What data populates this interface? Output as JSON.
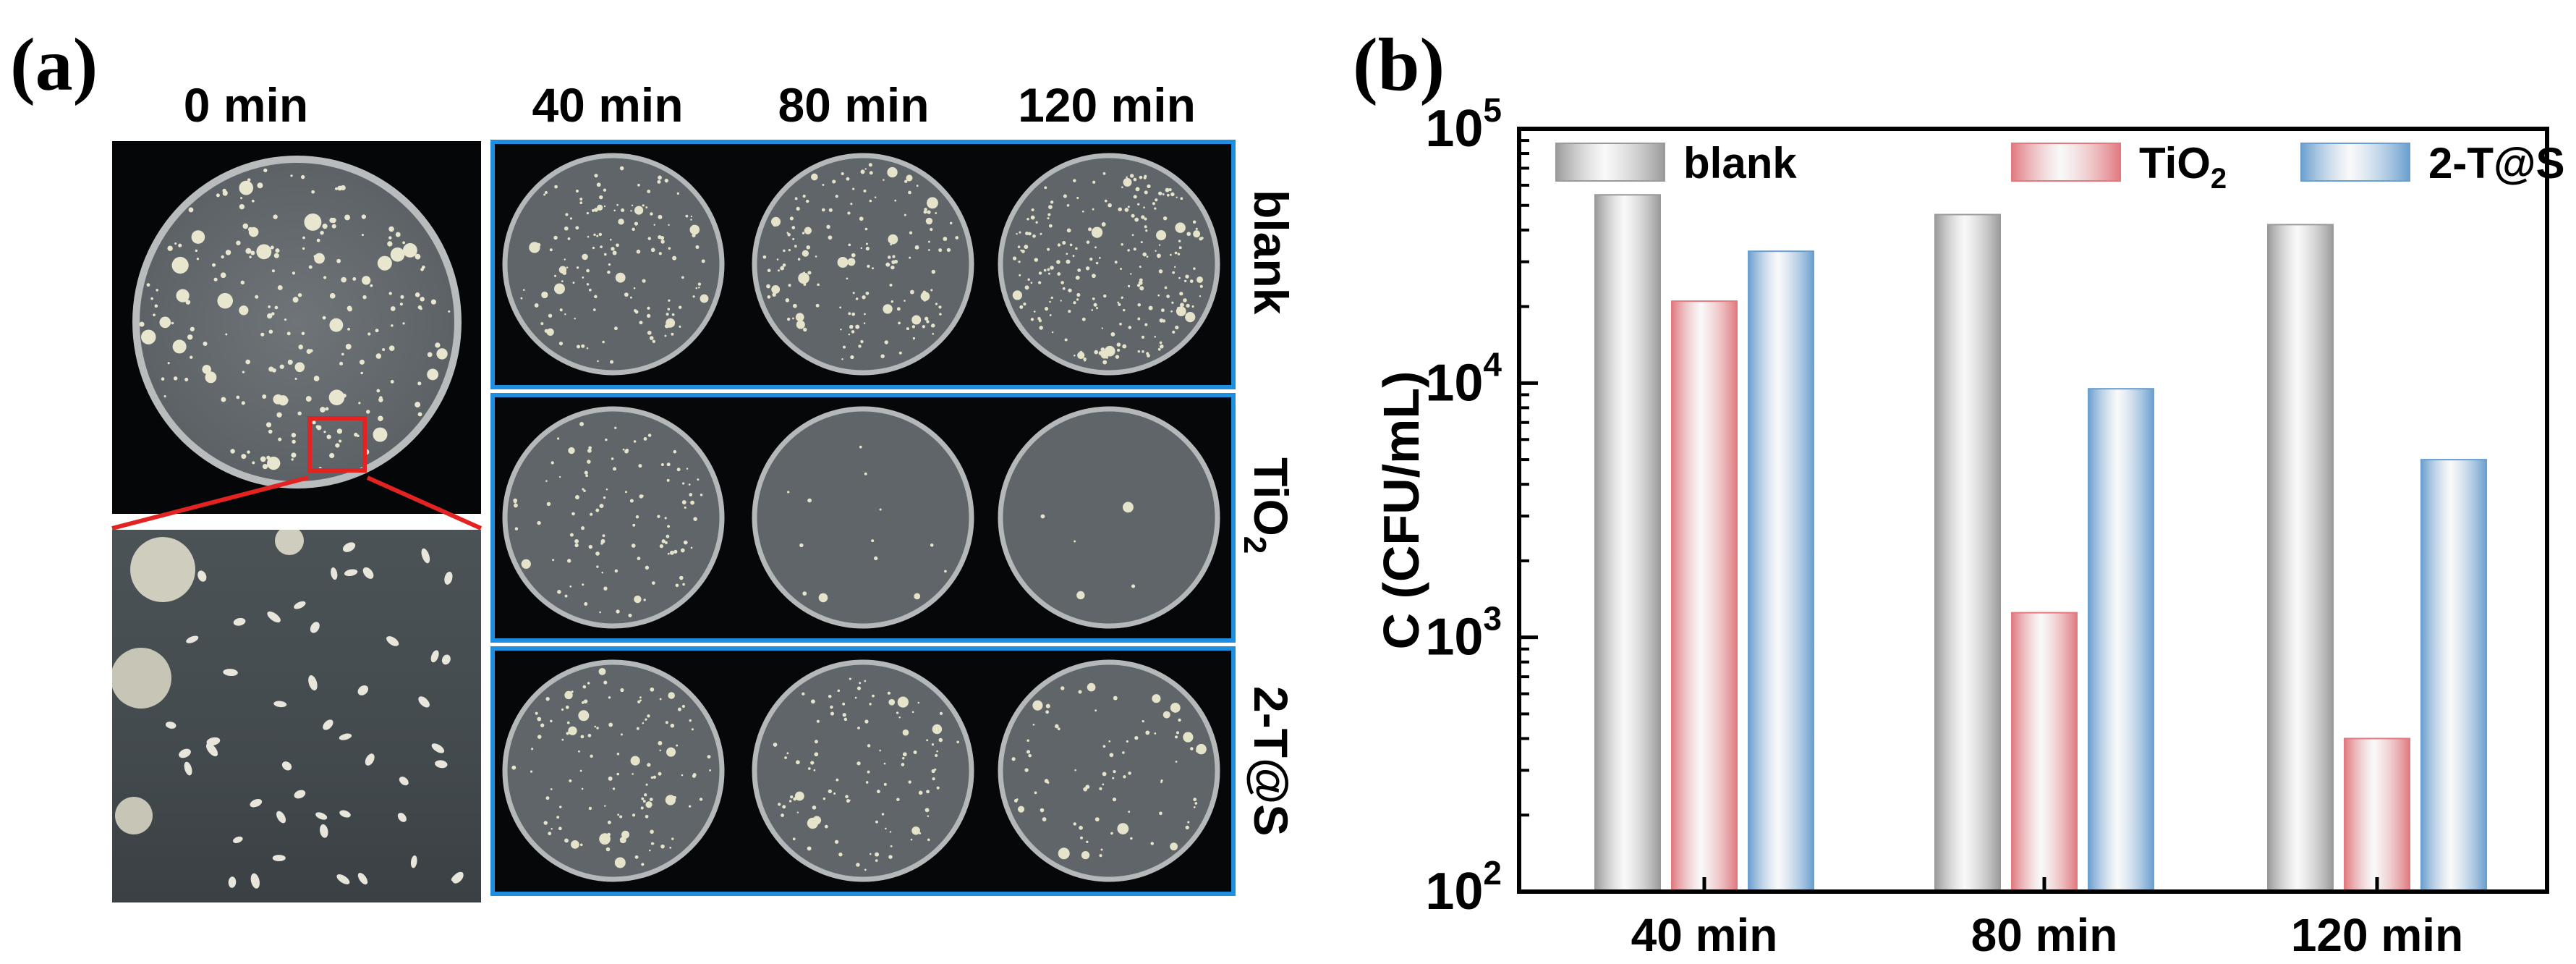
{
  "panel_a": {
    "letter": "(a)",
    "time_labels": [
      "0 min",
      "40 min",
      "80 min",
      "120 min"
    ],
    "row_labels": [
      "blank",
      "TiO2",
      "2-T@S"
    ],
    "colony_density": {
      "blank": [
        0.55,
        0.6,
        0.9
      ],
      "TiO2": [
        0.4,
        0.05,
        0.02
      ],
      "2-T@S": [
        0.45,
        0.4,
        0.3
      ]
    }
  },
  "panel_b": {
    "letter": "(b)"
  },
  "chart_data": {
    "type": "bar",
    "categories": [
      "40 min",
      "80 min",
      "120 min"
    ],
    "series": [
      {
        "name": "blank",
        "values": [
          55000,
          46000,
          42000
        ],
        "color": "#9a9a9a"
      },
      {
        "name": "TiO2",
        "values": [
          21000,
          1250,
          400
        ],
        "color": "#e07a80"
      },
      {
        "name": "2-T@S",
        "values": [
          33000,
          9500,
          5000
        ],
        "color": "#6a9fcf"
      }
    ],
    "ylabel": "C (CFU/mL)",
    "yscale": "log",
    "ylim": [
      100,
      100000
    ],
    "yticks": [
      100,
      1000,
      10000,
      100000
    ],
    "ytick_labels": [
      "10^2",
      "10^3",
      "10^4",
      "10^5"
    ],
    "legend_position": "top",
    "grid": false
  }
}
